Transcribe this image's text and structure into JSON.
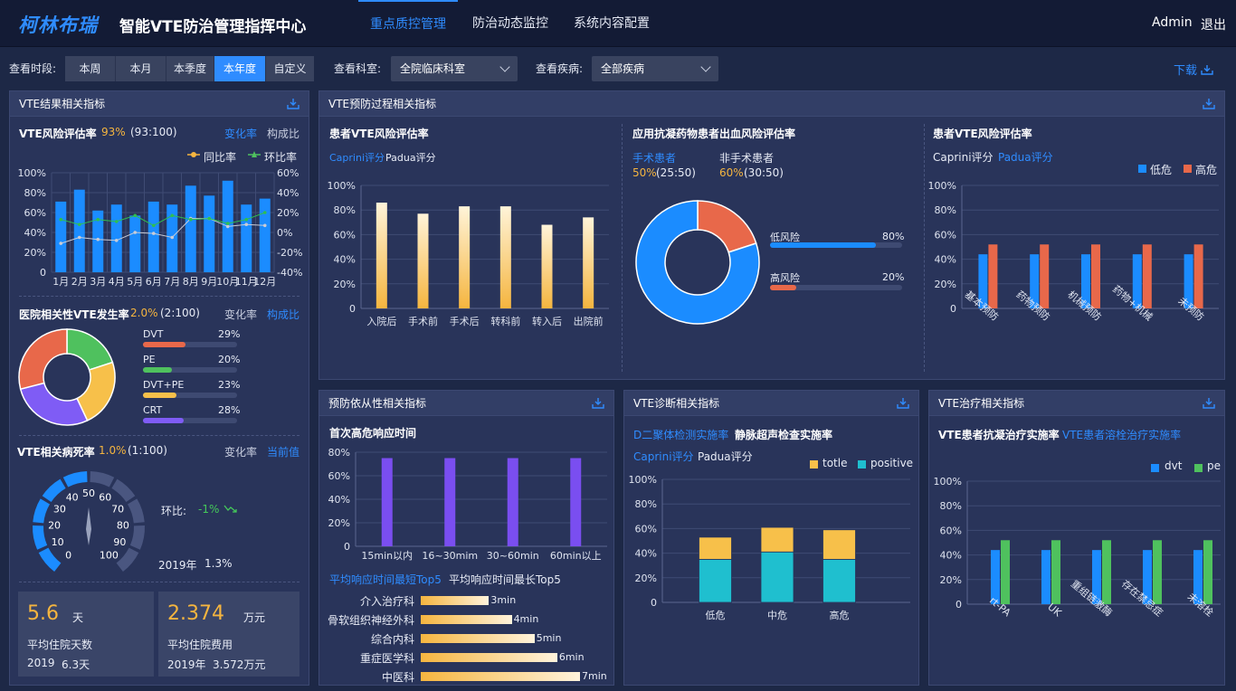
{
  "header": {
    "logo": "柯林布瑞",
    "title": "智能VTE防治管理指挥中心",
    "nav": [
      "重点质控管理",
      "防治动态监控",
      "系统内容配置"
    ],
    "user": "Admin",
    "logout": "退出"
  },
  "filters": {
    "time_label": "查看时段:",
    "time_options": [
      "本周",
      "本月",
      "本季度",
      "本年度",
      "自定义"
    ],
    "time_selected": "本年度",
    "dept_label": "查看科室:",
    "dept_value": "全院临床科室",
    "disease_label": "查看疾病:",
    "disease_value": "全部疾病",
    "download": "下载"
  },
  "result_panel": {
    "title": "VTE结果相关指标",
    "risk": {
      "label": "VTE风险评估率",
      "rate": "93%",
      "ratio": "(93:100)",
      "tab_change": "变化率",
      "tab_comp": "构成比",
      "legend_yoy": "同比率",
      "legend_mom": "环比率"
    },
    "incidence": {
      "label": "医院相关性VTE发生率",
      "rate": "2.0%",
      "ratio": "(2:100)",
      "tab_change": "变化率",
      "tab_comp": "构成比",
      "items": [
        {
          "name": "DVT",
          "pct": "29%",
          "value": 29,
          "color": "#e8684a"
        },
        {
          "name": "PE",
          "pct": "20%",
          "value": 20,
          "color": "#4fc15e"
        },
        {
          "name": "DVT+PE",
          "pct": "23%",
          "value": 23,
          "color": "#f7c04a"
        },
        {
          "name": "CRT",
          "pct": "28%",
          "value": 28,
          "color": "#7f5cf5"
        }
      ]
    },
    "mortality": {
      "label": "VTE相关病死率",
      "rate": "1.0%",
      "ratio": "(1:100)",
      "tab_change": "变化率",
      "tab_current": "当前值",
      "gauge_ticks": [
        "0",
        "10",
        "20",
        "30",
        "40",
        "50",
        "60",
        "70",
        "80",
        "90",
        "100"
      ],
      "mom_label": "环比:",
      "mom_value": "-1%",
      "year": "2019年",
      "year_value": "1.3%"
    },
    "cards": [
      {
        "value": "5.6",
        "unit": "天",
        "label": "平均住院天数",
        "year": "2019",
        "prev": "6.3天"
      },
      {
        "value": "2.374",
        "unit": "万元",
        "label": "平均住院费用",
        "year": "2019年",
        "prev": "3.572万元"
      }
    ]
  },
  "process_panel": {
    "title": "VTE预防过程相关指标",
    "risk_title": "患者VTE风险评估率",
    "tabs": [
      "Caprini评分",
      "Padua评分"
    ],
    "bleed_title": "应用抗凝药物患者出血风险评估率",
    "surg_label": "手术患者",
    "surg_rate": "50%",
    "surg_ratio": "(25:50)",
    "nonsurg_label": "非手术患者",
    "nonsurg_rate": "60%",
    "nonsurg_ratio": "(30:50)",
    "low_label": "低风险",
    "low_pct": "80%",
    "high_label": "高风险",
    "high_pct": "20%",
    "risk2_title": "患者VTE风险评估率",
    "legend_low": "低危",
    "legend_high": "高危"
  },
  "compliance_panel": {
    "title": "预防依从性相关指标",
    "response_title": "首次高危响应时间",
    "top_short": "平均响应时间最短Top5",
    "top_long": "平均响应时间最长Top5",
    "departments": [
      {
        "name": "介入治疗科",
        "time": "3min",
        "value": 3
      },
      {
        "name": "骨软组织神经外科",
        "time": "4min",
        "value": 4
      },
      {
        "name": "综合内科",
        "time": "5min",
        "value": 5
      },
      {
        "name": "重症医学科",
        "time": "6min",
        "value": 6
      },
      {
        "name": "中医科",
        "time": "7min",
        "value": 7
      }
    ]
  },
  "diagnosis_panel": {
    "title": "VTE诊断相关指标",
    "tab_d2": "D二聚体检测实施率",
    "tab_us": "静脉超声检查实施率",
    "tabs": [
      "Caprini评分",
      "Padua评分"
    ],
    "legend_totle": "totle",
    "legend_positive": "positive"
  },
  "treatment_panel": {
    "title": "VTE治疗相关指标",
    "tab_anti": "VTE患者抗凝治疗实施率",
    "tab_lysis": "VTE患者溶栓治疗实施率",
    "legend_dvt": "dvt",
    "legend_pe": "pe"
  },
  "chart_data": [
    {
      "type": "bar",
      "title": "VTE风险评估率",
      "categories": [
        "1月",
        "2月",
        "3月",
        "4月",
        "5月",
        "6月",
        "7月",
        "8月",
        "9月",
        "10月",
        "11月",
        "12月"
      ],
      "yticks": [
        "100%",
        "80%",
        "60%",
        "40%",
        "20%",
        "0"
      ],
      "y2ticks": [
        "60%",
        "40%",
        "20%",
        "0%",
        "-20%",
        "-40%"
      ],
      "ylim": [
        0,
        100
      ],
      "y2lim": [
        -40,
        60
      ],
      "values": [
        71,
        83,
        62,
        68,
        57,
        71,
        68,
        87,
        77,
        92,
        68,
        74
      ],
      "series": [
        {
          "name": "同比率",
          "type": "line",
          "values": [
            -11,
            -5,
            -7,
            -8,
            0,
            -1,
            -5,
            14,
            14,
            6,
            8,
            7
          ]
        },
        {
          "name": "环比率",
          "type": "line",
          "values": [
            13,
            8,
            13,
            11,
            17,
            7,
            17,
            13,
            14,
            9,
            13,
            20
          ]
        }
      ]
    },
    {
      "type": "pie",
      "title": "医院相关性VTE发生率",
      "categories": [
        "DVT",
        "PE",
        "DVT+PE",
        "CRT"
      ],
      "values": [
        29,
        20,
        23,
        28
      ]
    },
    {
      "type": "bar",
      "title": "患者VTE风险评估率",
      "categories": [
        "入院后",
        "手术前",
        "手术后",
        "转科前",
        "转入后",
        "出院前"
      ],
      "yticks": [
        "100%",
        "80%",
        "60%",
        "40%",
        "20%",
        "0"
      ],
      "ylim": [
        0,
        100
      ],
      "values": [
        86,
        77,
        83,
        83,
        68,
        74
      ]
    },
    {
      "type": "pie",
      "title": "应用抗凝药物患者出血风险评估率",
      "categories": [
        "低风险",
        "高风险"
      ],
      "values": [
        80,
        20
      ]
    },
    {
      "type": "bar",
      "title": "患者VTE风险评估率",
      "categories": [
        "基本预防",
        "药物预防",
        "机械预防",
        "药物+机械",
        "未预防"
      ],
      "yticks": [
        "100%",
        "80%",
        "60%",
        "40%",
        "20%",
        "0"
      ],
      "ylim": [
        0,
        100
      ],
      "series": [
        {
          "name": "低危",
          "values": [
            44,
            44,
            44,
            44,
            44
          ]
        },
        {
          "name": "高危",
          "values": [
            52,
            52,
            52,
            52,
            52
          ]
        }
      ]
    },
    {
      "type": "bar",
      "title": "首次高危响应时间",
      "categories": [
        "15min以内",
        "16~30mim",
        "30~60min",
        "60min以上"
      ],
      "yticks": [
        "80%",
        "60%",
        "40%",
        "20%",
        "0"
      ],
      "ylim": [
        0,
        80
      ],
      "values": [
        75,
        75,
        75,
        75
      ]
    },
    {
      "type": "bar",
      "title": "D二聚体检测实施率",
      "categories": [
        "低危",
        "中危",
        "高危"
      ],
      "yticks": [
        "100%",
        "80%",
        "60%",
        "40%",
        "20%",
        "0"
      ],
      "ylim": [
        0,
        100
      ],
      "series": [
        {
          "name": "positive",
          "values": [
            35,
            41,
            35
          ]
        },
        {
          "name": "totle",
          "values": [
            18,
            20,
            24
          ]
        }
      ]
    },
    {
      "type": "bar",
      "title": "VTE患者抗凝治疗实施率",
      "categories": [
        "rt-PA",
        "UK",
        "重组链激酶",
        "存在禁忌症",
        "未溶栓"
      ],
      "yticks": [
        "100%",
        "80%",
        "60%",
        "40%",
        "20%",
        "0"
      ],
      "ylim": [
        0,
        100
      ],
      "series": [
        {
          "name": "dvt",
          "values": [
            44,
            44,
            44,
            44,
            44
          ]
        },
        {
          "name": "pe",
          "values": [
            52,
            52,
            52,
            52,
            52
          ]
        }
      ]
    }
  ]
}
